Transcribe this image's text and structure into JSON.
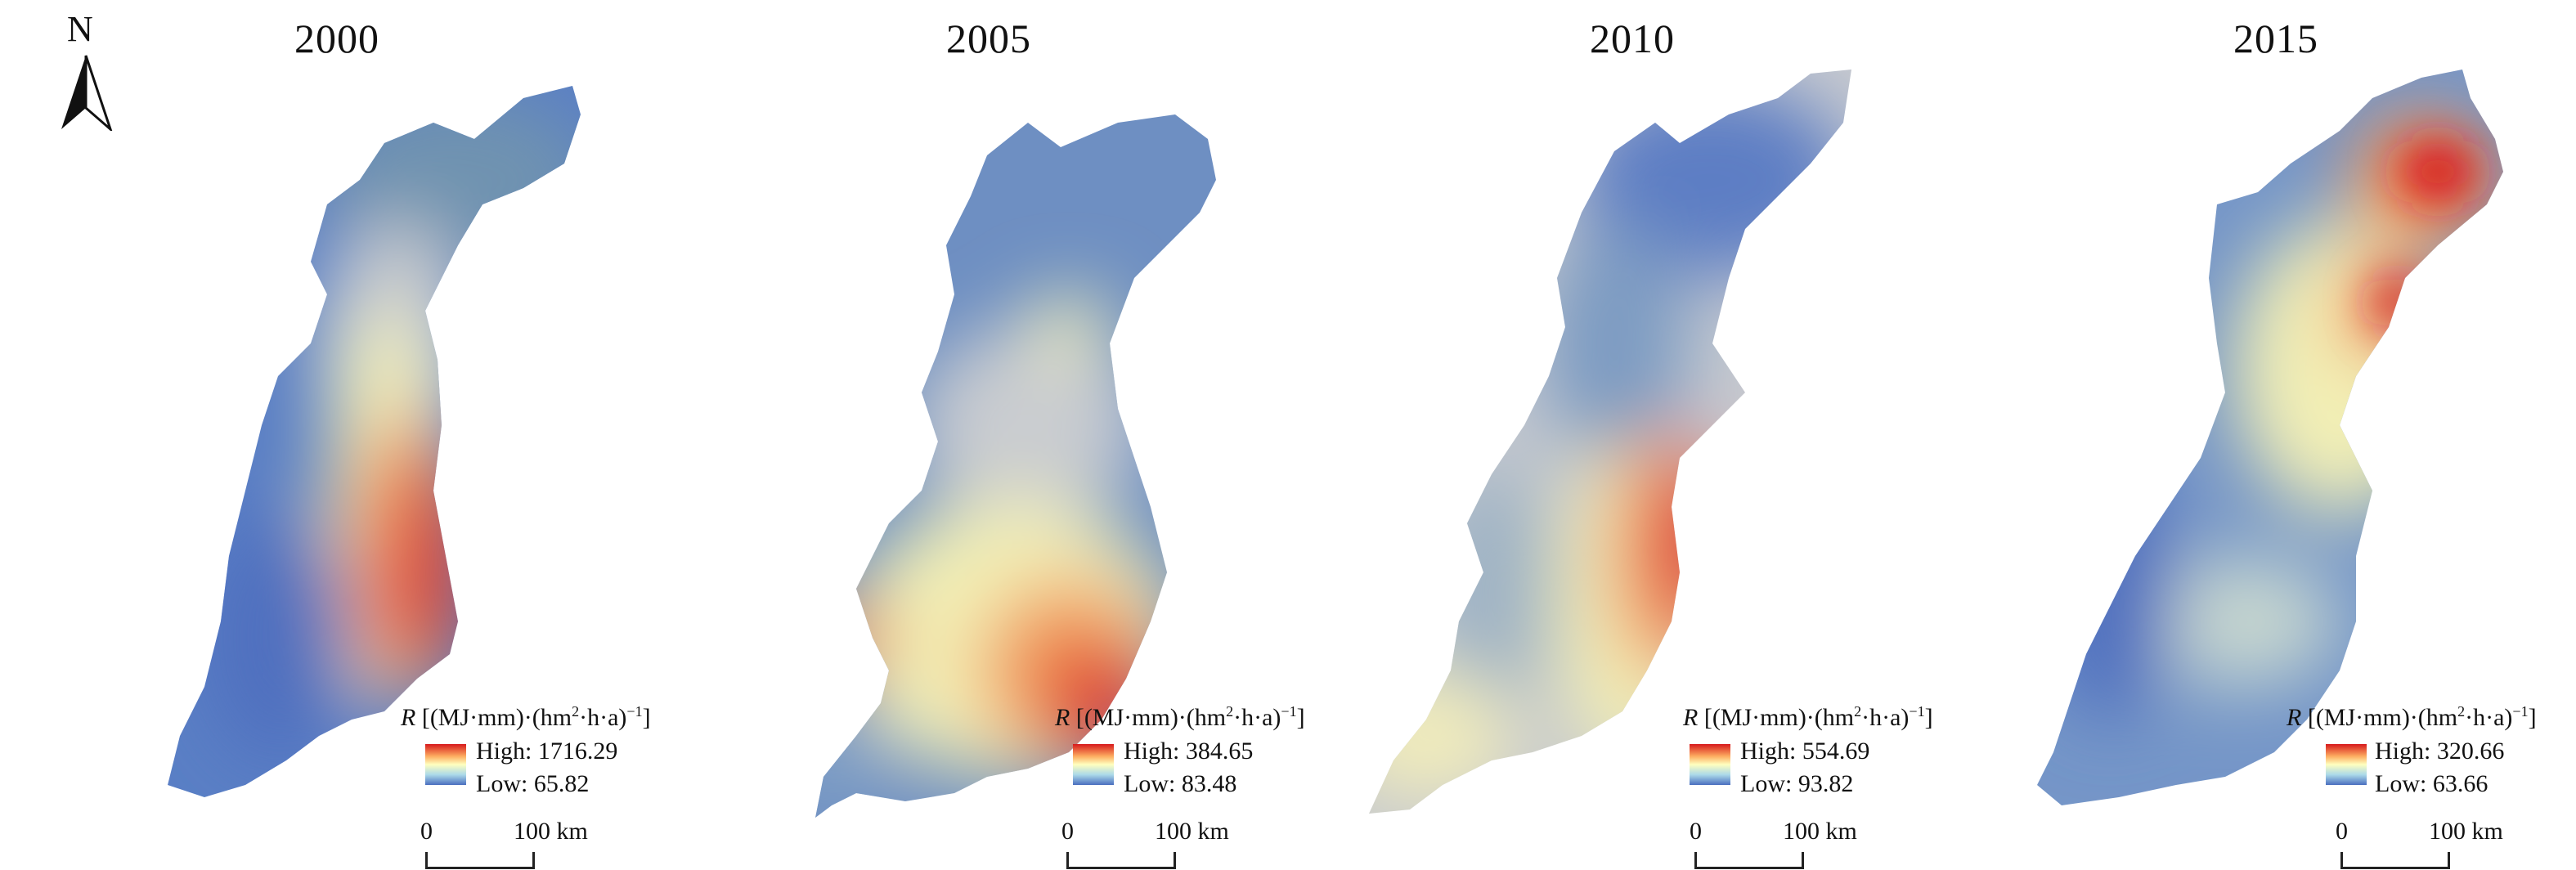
{
  "north_arrow_label": "N",
  "legend_title_symbol": "R",
  "legend_title_units": "[(MJ·mm)·(hm",
  "legend_title_sup1": "2",
  "legend_title_units2": "·h·a)",
  "legend_title_sup2": "−1",
  "legend_title_close": "]",
  "scale_zero": "0",
  "scale_end": "100 km",
  "colors": {
    "high": "#d7191c",
    "mid": "#ffffbf",
    "low": "#4a6fbf"
  },
  "panels": [
    {
      "year": "2000",
      "high": "High: 1716.29",
      "low": "Low: 65.82"
    },
    {
      "year": "2005",
      "high": "High: 384.65",
      "low": "Low: 83.48"
    },
    {
      "year": "2010",
      "high": "High: 554.69",
      "low": "Low: 93.82"
    },
    {
      "year": "2015",
      "high": "High: 320.66",
      "low": "Low: 63.66"
    }
  ]
}
